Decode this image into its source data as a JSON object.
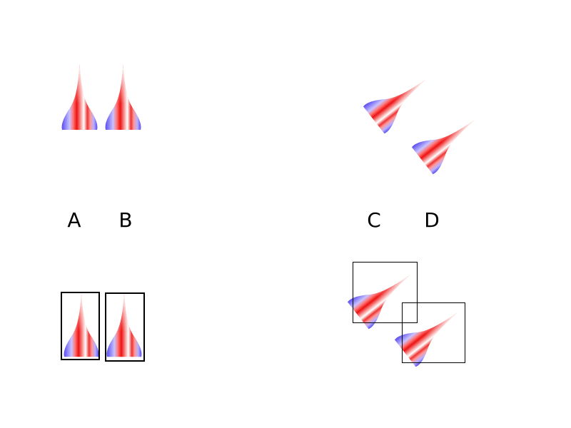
{
  "labels": {
    "a": "A",
    "b": "B",
    "c": "C",
    "d": "D"
  },
  "colors": {
    "red": "#ee1111",
    "blue": "#5a4cf0",
    "white": "#ffffff",
    "box_stroke": "#000000",
    "label": "#000000"
  },
  "shape_icon": "arrowhead-icon"
}
